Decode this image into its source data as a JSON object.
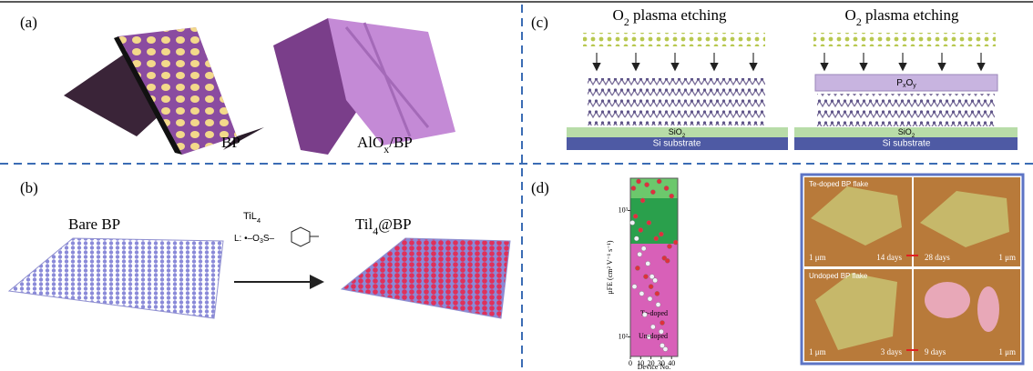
{
  "panel_a": {
    "label": "(a)",
    "captions": [
      [
        "BP"
      ],
      [
        "AlO",
        "x",
        "/BP"
      ]
    ]
  },
  "panel_b": {
    "label": "(b)",
    "bare": "Bare BP",
    "reagent": [
      "TiL",
      "4"
    ],
    "ligand": [
      "L: •–O",
      "3",
      "S–"
    ],
    "product": [
      "Til",
      "4",
      "@BP"
    ]
  },
  "panel_c": {
    "label": "(c)",
    "left": {
      "title": [
        "O",
        "2",
        " plasma etching"
      ],
      "oxide": [
        "SiO",
        "2"
      ],
      "substrate": "Si substrate"
    },
    "right": {
      "title": [
        "O",
        "2",
        " plasma etching"
      ],
      "layer": [
        "P",
        "x",
        "O",
        "y"
      ],
      "oxide": [
        "SiO",
        "2"
      ],
      "substrate": "Si substrate"
    }
  },
  "panel_d": {
    "label": "(d)",
    "chart_data": {
      "type": "scatter",
      "x_label": "Device No.",
      "y_label": "μFE (cm² V⁻¹ s⁻¹)",
      "xlim": [
        0,
        46
      ],
      "ylim": [
        70,
        1800
      ],
      "log_y": true,
      "xticks": [
        0,
        10,
        20,
        30,
        40
      ],
      "yticks": [
        {
          "value": 100,
          "label": "10²"
        },
        {
          "value": 1000,
          "label": "10³"
        }
      ],
      "series": [
        {
          "name": "Te-doped",
          "color": "#e0303a",
          "x": [
            3,
            8,
            12,
            16,
            22,
            28,
            35,
            40,
            5,
            10,
            18,
            25,
            30,
            38,
            44,
            7,
            15,
            20,
            26,
            33,
            36
          ],
          "values": [
            1500,
            1700,
            1200,
            1600,
            1400,
            1700,
            1500,
            1300,
            900,
            700,
            800,
            600,
            650,
            520,
            560,
            350,
            300,
            250,
            220,
            420,
            400
          ]
        },
        {
          "name": "Un-doped",
          "color": "#f2f2f8",
          "x": [
            2,
            6,
            9,
            13,
            17,
            21,
            24,
            4,
            11,
            19,
            27,
            14,
            22,
            30,
            18,
            34
          ],
          "values": [
            800,
            600,
            450,
            500,
            380,
            300,
            280,
            250,
            220,
            200,
            180,
            150,
            120,
            110,
            100,
            80
          ]
        }
      ]
    },
    "afm": {
      "top_title": "Te-doped BP flake",
      "bottom_title": "Undoped BP flake",
      "scale": "1 μm",
      "days": [
        "14 days",
        "28 days",
        "3 days",
        "9 days"
      ]
    }
  }
}
